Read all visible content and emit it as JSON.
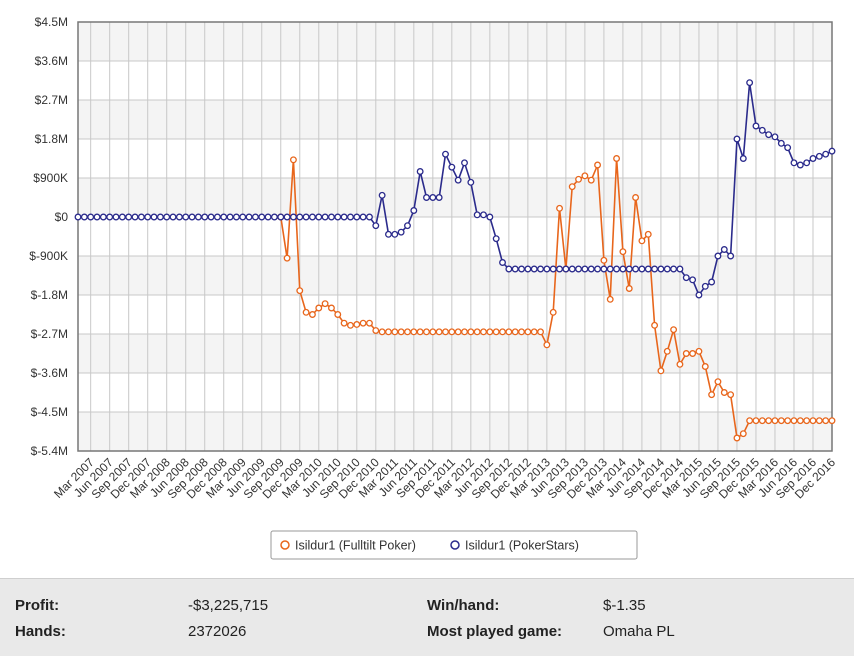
{
  "chart_data": {
    "type": "line",
    "title": "",
    "ylim": [
      -5400000,
      4500000
    ],
    "y_ticks": [
      {
        "value": 4500000,
        "label": "$4.5M"
      },
      {
        "value": 3600000,
        "label": "$3.6M"
      },
      {
        "value": 2700000,
        "label": "$2.7M"
      },
      {
        "value": 1800000,
        "label": "$1.8M"
      },
      {
        "value": 900000,
        "label": "$900K"
      },
      {
        "value": 0,
        "label": "$0"
      },
      {
        "value": -900000,
        "label": "$-900K"
      },
      {
        "value": -1800000,
        "label": "$-1.8M"
      },
      {
        "value": -2700000,
        "label": "$-2.7M"
      },
      {
        "value": -3600000,
        "label": "$-3.6M"
      },
      {
        "value": -4500000,
        "label": "$-4.5M"
      },
      {
        "value": -5400000,
        "label": "$-5.4M"
      }
    ],
    "x_labels": [
      "Mar 2007",
      "Jun 2007",
      "Sep 2007",
      "Dec 2007",
      "Mar 2008",
      "Jun 2008",
      "Sep 2008",
      "Dec 2008",
      "Mar 2009",
      "Jun 2009",
      "Sep 2009",
      "Dec 2009",
      "Mar 2010",
      "Jun 2010",
      "Sep 2010",
      "Dec 2010",
      "Mar 2011",
      "Jun 2011",
      "Sep 2011",
      "Dec 2011",
      "Mar 2012",
      "Jun 2012",
      "Sep 2012",
      "Dec 2012",
      "Mar 2013",
      "Jun 2013",
      "Sep 2013",
      "Dec 2013",
      "Mar 2014",
      "Jun 2014",
      "Sep 2014",
      "Dec 2014",
      "Mar 2015",
      "Jun 2015",
      "Sep 2015",
      "Dec 2015",
      "Mar 2016",
      "Jun 2016",
      "Sep 2016",
      "Dec 2016"
    ],
    "x_start": "2007-01",
    "x_end": "2016-12",
    "grid": true,
    "legend_position": "bottom-center",
    "series": [
      {
        "name": "Isildur1 (Fulltilt Poker)",
        "color": "#e8661c",
        "points": [
          [
            "2009-09",
            0
          ],
          [
            "2009-10",
            -950000
          ],
          [
            "2009-11",
            1320000
          ],
          [
            "2009-12",
            -1700000
          ],
          [
            "2010-01",
            -2200000
          ],
          [
            "2010-02",
            -2250000
          ],
          [
            "2010-03",
            -2100000
          ],
          [
            "2010-04",
            -2000000
          ],
          [
            "2010-05",
            -2100000
          ],
          [
            "2010-06",
            -2250000
          ],
          [
            "2010-07",
            -2450000
          ],
          [
            "2010-08",
            -2500000
          ],
          [
            "2010-09",
            -2480000
          ],
          [
            "2010-10",
            -2450000
          ],
          [
            "2010-11",
            -2450000
          ],
          [
            "2010-12",
            -2620000
          ],
          [
            "2011-01",
            -2650000
          ],
          [
            "2011-02",
            -2650000
          ],
          [
            "2011-03",
            -2650000
          ],
          [
            "2011-04",
            -2650000
          ],
          [
            "2011-05",
            -2650000
          ],
          [
            "2011-06",
            -2650000
          ],
          [
            "2011-07",
            -2650000
          ],
          [
            "2011-08",
            -2650000
          ],
          [
            "2011-09",
            -2650000
          ],
          [
            "2011-10",
            -2650000
          ],
          [
            "2011-11",
            -2650000
          ],
          [
            "2011-12",
            -2650000
          ],
          [
            "2012-01",
            -2650000
          ],
          [
            "2012-02",
            -2650000
          ],
          [
            "2012-03",
            -2650000
          ],
          [
            "2012-04",
            -2650000
          ],
          [
            "2012-05",
            -2650000
          ],
          [
            "2012-06",
            -2650000
          ],
          [
            "2012-07",
            -2650000
          ],
          [
            "2012-08",
            -2650000
          ],
          [
            "2012-09",
            -2650000
          ],
          [
            "2012-10",
            -2650000
          ],
          [
            "2012-11",
            -2650000
          ],
          [
            "2012-12",
            -2650000
          ],
          [
            "2013-01",
            -2650000
          ],
          [
            "2013-02",
            -2650000
          ],
          [
            "2013-03",
            -2950000
          ],
          [
            "2013-04",
            -2200000
          ],
          [
            "2013-05",
            200000
          ],
          [
            "2013-06",
            -1200000
          ],
          [
            "2013-07",
            700000
          ],
          [
            "2013-08",
            870000
          ],
          [
            "2013-09",
            950000
          ],
          [
            "2013-10",
            850000
          ],
          [
            "2013-11",
            1200000
          ],
          [
            "2013-12",
            -1000000
          ],
          [
            "2014-01",
            -1900000
          ],
          [
            "2014-02",
            1350000
          ],
          [
            "2014-03",
            -800000
          ],
          [
            "2014-04",
            -1650000
          ],
          [
            "2014-05",
            450000
          ],
          [
            "2014-06",
            -550000
          ],
          [
            "2014-07",
            -400000
          ],
          [
            "2014-08",
            -2500000
          ],
          [
            "2014-09",
            -3550000
          ],
          [
            "2014-10",
            -3100000
          ],
          [
            "2014-11",
            -2600000
          ],
          [
            "2014-12",
            -3400000
          ],
          [
            "2015-01",
            -3150000
          ],
          [
            "2015-02",
            -3150000
          ],
          [
            "2015-03",
            -3100000
          ],
          [
            "2015-04",
            -3450000
          ],
          [
            "2015-05",
            -4100000
          ],
          [
            "2015-06",
            -3800000
          ],
          [
            "2015-07",
            -4050000
          ],
          [
            "2015-08",
            -4100000
          ],
          [
            "2015-09",
            -5100000
          ],
          [
            "2015-10",
            -5000000
          ],
          [
            "2015-11",
            -4700000
          ],
          [
            "2015-12",
            -4700000
          ],
          [
            "2016-01",
            -4700000
          ],
          [
            "2016-02",
            -4700000
          ],
          [
            "2016-03",
            -4700000
          ],
          [
            "2016-04",
            -4700000
          ],
          [
            "2016-05",
            -4700000
          ],
          [
            "2016-06",
            -4700000
          ],
          [
            "2016-07",
            -4700000
          ],
          [
            "2016-08",
            -4700000
          ],
          [
            "2016-09",
            -4700000
          ],
          [
            "2016-10",
            -4700000
          ],
          [
            "2016-11",
            -4700000
          ],
          [
            "2016-12",
            -4700000
          ]
        ]
      },
      {
        "name": "Isildur1 (PokerStars)",
        "color": "#2b2b8c",
        "points": [
          [
            "2007-01",
            0
          ],
          [
            "2007-02",
            0
          ],
          [
            "2007-03",
            0
          ],
          [
            "2007-04",
            0
          ],
          [
            "2007-05",
            0
          ],
          [
            "2007-06",
            0
          ],
          [
            "2007-07",
            0
          ],
          [
            "2007-08",
            0
          ],
          [
            "2007-09",
            0
          ],
          [
            "2007-10",
            0
          ],
          [
            "2007-11",
            0
          ],
          [
            "2007-12",
            0
          ],
          [
            "2008-01",
            0
          ],
          [
            "2008-02",
            0
          ],
          [
            "2008-03",
            0
          ],
          [
            "2008-04",
            0
          ],
          [
            "2008-05",
            0
          ],
          [
            "2008-06",
            0
          ],
          [
            "2008-07",
            0
          ],
          [
            "2008-08",
            0
          ],
          [
            "2008-09",
            0
          ],
          [
            "2008-10",
            0
          ],
          [
            "2008-11",
            0
          ],
          [
            "2008-12",
            0
          ],
          [
            "2009-01",
            0
          ],
          [
            "2009-02",
            0
          ],
          [
            "2009-03",
            0
          ],
          [
            "2009-04",
            0
          ],
          [
            "2009-05",
            0
          ],
          [
            "2009-06",
            0
          ],
          [
            "2009-07",
            0
          ],
          [
            "2009-08",
            0
          ],
          [
            "2009-09",
            0
          ],
          [
            "2009-10",
            0
          ],
          [
            "2009-11",
            0
          ],
          [
            "2009-12",
            0
          ],
          [
            "2010-01",
            0
          ],
          [
            "2010-02",
            0
          ],
          [
            "2010-03",
            0
          ],
          [
            "2010-04",
            0
          ],
          [
            "2010-05",
            0
          ],
          [
            "2010-06",
            0
          ],
          [
            "2010-07",
            0
          ],
          [
            "2010-08",
            0
          ],
          [
            "2010-09",
            0
          ],
          [
            "2010-10",
            0
          ],
          [
            "2010-11",
            0
          ],
          [
            "2010-12",
            -200000
          ],
          [
            "2011-01",
            500000
          ],
          [
            "2011-02",
            -400000
          ],
          [
            "2011-03",
            -400000
          ],
          [
            "2011-04",
            -350000
          ],
          [
            "2011-05",
            -200000
          ],
          [
            "2011-06",
            150000
          ],
          [
            "2011-07",
            1050000
          ],
          [
            "2011-08",
            450000
          ],
          [
            "2011-09",
            450000
          ],
          [
            "2011-10",
            450000
          ],
          [
            "2011-11",
            1450000
          ],
          [
            "2011-12",
            1150000
          ],
          [
            "2012-01",
            850000
          ],
          [
            "2012-02",
            1250000
          ],
          [
            "2012-03",
            800000
          ],
          [
            "2012-04",
            50000
          ],
          [
            "2012-05",
            50000
          ],
          [
            "2012-06",
            0
          ],
          [
            "2012-07",
            -500000
          ],
          [
            "2012-08",
            -1050000
          ],
          [
            "2012-09",
            -1200000
          ],
          [
            "2012-10",
            -1200000
          ],
          [
            "2012-11",
            -1200000
          ],
          [
            "2012-12",
            -1200000
          ],
          [
            "2013-01",
            -1200000
          ],
          [
            "2013-02",
            -1200000
          ],
          [
            "2013-03",
            -1200000
          ],
          [
            "2013-04",
            -1200000
          ],
          [
            "2013-05",
            -1200000
          ],
          [
            "2013-06",
            -1200000
          ],
          [
            "2013-07",
            -1200000
          ],
          [
            "2013-08",
            -1200000
          ],
          [
            "2013-09",
            -1200000
          ],
          [
            "2013-10",
            -1200000
          ],
          [
            "2013-11",
            -1200000
          ],
          [
            "2013-12",
            -1200000
          ],
          [
            "2014-01",
            -1200000
          ],
          [
            "2014-02",
            -1200000
          ],
          [
            "2014-03",
            -1200000
          ],
          [
            "2014-04",
            -1200000
          ],
          [
            "2014-05",
            -1200000
          ],
          [
            "2014-06",
            -1200000
          ],
          [
            "2014-07",
            -1200000
          ],
          [
            "2014-08",
            -1200000
          ],
          [
            "2014-09",
            -1200000
          ],
          [
            "2014-10",
            -1200000
          ],
          [
            "2014-11",
            -1200000
          ],
          [
            "2014-12",
            -1200000
          ],
          [
            "2015-01",
            -1400000
          ],
          [
            "2015-02",
            -1450000
          ],
          [
            "2015-03",
            -1800000
          ],
          [
            "2015-04",
            -1600000
          ],
          [
            "2015-05",
            -1500000
          ],
          [
            "2015-06",
            -900000
          ],
          [
            "2015-07",
            -750000
          ],
          [
            "2015-08",
            -900000
          ],
          [
            "2015-09",
            1800000
          ],
          [
            "2015-10",
            1350000
          ],
          [
            "2015-11",
            3100000
          ],
          [
            "2015-12",
            2100000
          ],
          [
            "2016-01",
            2000000
          ],
          [
            "2016-02",
            1900000
          ],
          [
            "2016-03",
            1850000
          ],
          [
            "2016-04",
            1700000
          ],
          [
            "2016-05",
            1600000
          ],
          [
            "2016-06",
            1250000
          ],
          [
            "2016-07",
            1200000
          ],
          [
            "2016-08",
            1250000
          ],
          [
            "2016-09",
            1350000
          ],
          [
            "2016-10",
            1400000
          ],
          [
            "2016-11",
            1450000
          ],
          [
            "2016-12",
            1520000
          ]
        ]
      }
    ]
  },
  "stats": {
    "profit_label": "Profit:",
    "profit_value": "-$3,225,715",
    "winhand_label": "Win/hand:",
    "winhand_value": "$-1.35",
    "hands_label": "Hands:",
    "hands_value": "2372026",
    "game_label": "Most played game:",
    "game_value": "Omaha PL"
  }
}
